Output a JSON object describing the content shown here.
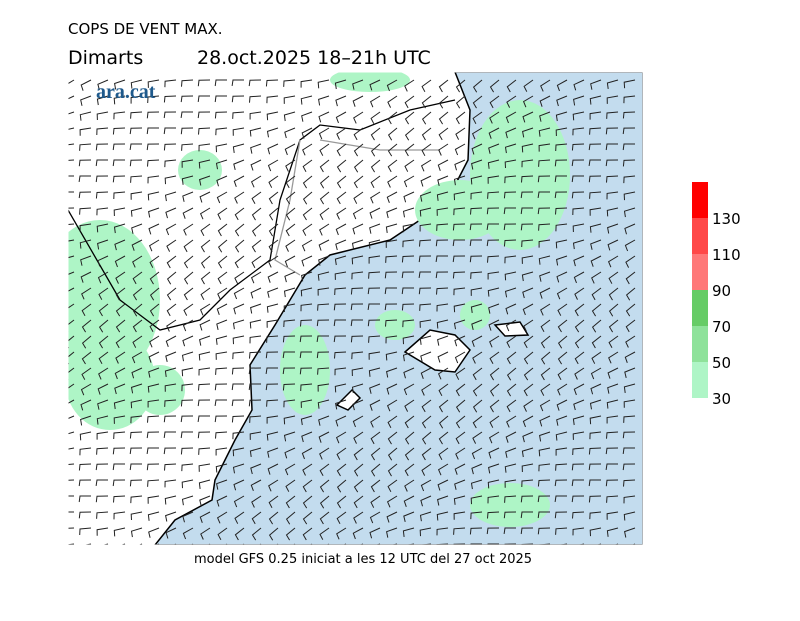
{
  "header": {
    "title": "COPS DE VENT MAX.",
    "day": "Dimarts",
    "date": "28.oct.2025 18–21h UTC",
    "logo": "ara.cat"
  },
  "footer": "model GFS 0.25 iniciat a les 12 UTC del 27 oct 2025",
  "legend": {
    "ticks": [
      30,
      50,
      70,
      90,
      110,
      130
    ],
    "colors": [
      "#aef5c6",
      "#8ee29a",
      "#66cc66",
      "#ff7878",
      "#ff4848",
      "#ff0000"
    ]
  }
}
